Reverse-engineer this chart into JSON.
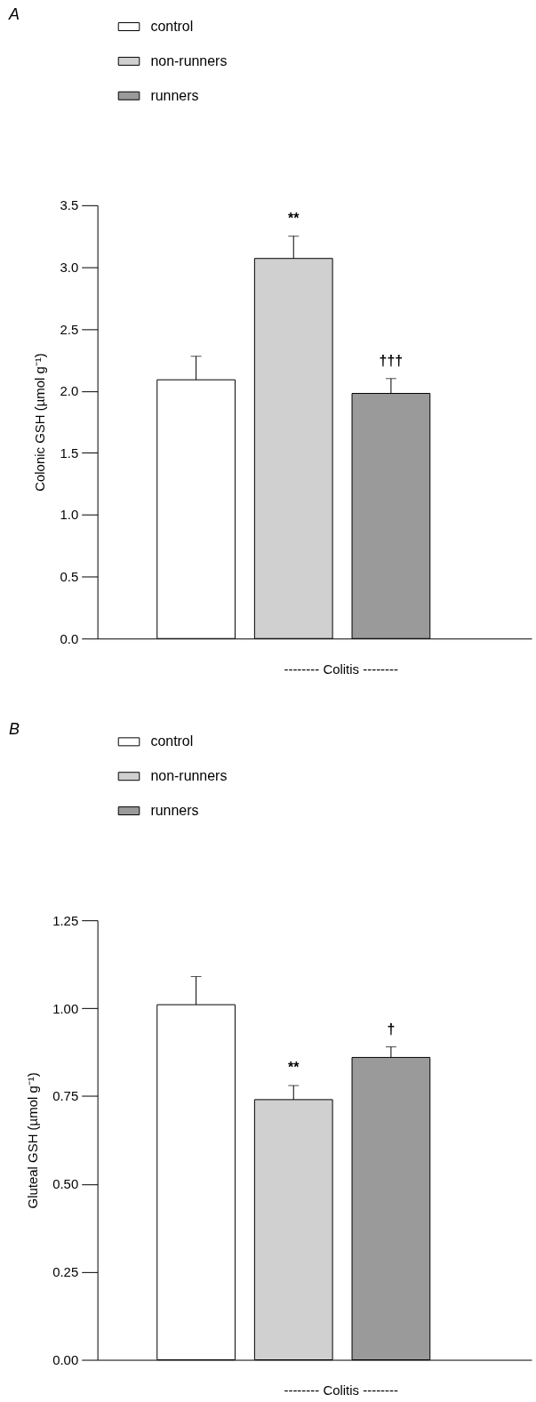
{
  "chart_data": [
    {
      "type": "bar",
      "title": "A",
      "ylabel": "Colonic GSH (µmol g⁻¹)",
      "categories": [
        null,
        null,
        null
      ],
      "ylim": [
        0,
        3.5
      ],
      "yticks": [
        {
          "value": 0,
          "label": "0.0"
        },
        0.5,
        {
          "value": 1,
          "label": "1.0"
        },
        1.5,
        {
          "value": 2,
          "label": "2.0"
        },
        2.5,
        {
          "value": 3,
          "label": "3.0"
        },
        3.5
      ],
      "tick_labels": "y",
      "legend": "top left",
      "grid": false,
      "series": [
        {
          "name": "control",
          "color": "#ffffff",
          "values": [
            2.09,
            null,
            null
          ],
          "errors": [
            [
              2.09,
              2.28
            ],
            null,
            null
          ]
        },
        {
          "name": "non-runners",
          "color": "#d0d0d0",
          "values": [
            null,
            3.07,
            null
          ],
          "errors": [
            null,
            [
              3.07,
              3.25
            ],
            null
          ]
        },
        {
          "name": "runners",
          "color": "#9a9a9a",
          "values": [
            null,
            null,
            1.98
          ],
          "errors": [
            null,
            null,
            [
              1.98,
              2.1
            ]
          ]
        }
      ],
      "annotations": [
        {
          "text": "**",
          "y": 3.25
        },
        {
          "text": "†††",
          "y": 2.1
        },
        "-------- Colitis --------"
      ]
    },
    {
      "type": "bar",
      "title": "B",
      "ylabel": "Gluteal GSH (µmol g⁻¹)",
      "categories": [
        null,
        null,
        null
      ],
      "ylim": [
        0,
        1.25
      ],
      "yticks": [
        {
          "value": 0,
          "label": "0.00"
        },
        0.25,
        {
          "value": 0.5,
          "label": "0.50"
        },
        0.75,
        {
          "value": 1,
          "label": "1.00"
        },
        1.25
      ],
      "tick_labels": "y",
      "legend": "top left",
      "grid": false,
      "series": [
        {
          "name": "control",
          "color": "#ffffff",
          "values": [
            1.01,
            null,
            null
          ],
          "errors": [
            [
              1.01,
              1.09
            ],
            null,
            null
          ]
        },
        {
          "name": "non-runners",
          "color": "#d0d0d0",
          "values": [
            null,
            0.74,
            null
          ],
          "errors": [
            null,
            [
              0.74,
              0.78
            ],
            null
          ]
        },
        {
          "name": "runners",
          "color": "#9a9a9a",
          "values": [
            null,
            null,
            0.86
          ],
          "errors": [
            null,
            null,
            [
              0.86,
              0.89
            ]
          ]
        }
      ],
      "annotations": [
        {
          "text": "**",
          "y": 0.78
        },
        {
          "text": "†",
          "y": 0.89
        },
        "-------- Colitis --------"
      ]
    }
  ]
}
